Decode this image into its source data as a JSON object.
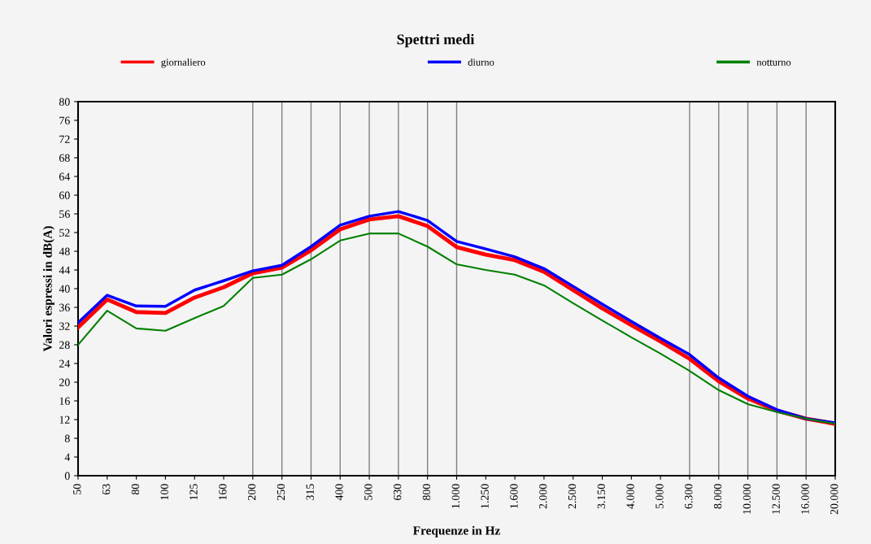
{
  "chart_data": {
    "type": "line",
    "title": "Spettri medi",
    "xlabel": "Frequenze in Hz",
    "ylabel": "Valori espressi in dB(A)",
    "categories": [
      "50",
      "63",
      "80",
      "100",
      "125",
      "160",
      "200",
      "250",
      "315",
      "400",
      "500",
      "630",
      "800",
      "1.000",
      "1.250",
      "1.600",
      "2.000",
      "2.500",
      "3.150",
      "4.000",
      "5.000",
      "6.300",
      "8.000",
      "10.000",
      "12.500",
      "16.000",
      "20.000"
    ],
    "series": [
      {
        "name": "giornaliero",
        "color": "#ff0000",
        "values": [
          31.7,
          37.7,
          35.0,
          34.8,
          38.1,
          40.3,
          43.3,
          44.5,
          48.2,
          52.7,
          54.8,
          55.5,
          53.4,
          48.9,
          47.3,
          46.1,
          43.6,
          39.7,
          35.8,
          32.2,
          28.7,
          25.0,
          20.2,
          16.5,
          13.9,
          12.2,
          11.1
        ]
      },
      {
        "name": "diurno",
        "color": "#0000ff",
        "values": [
          32.7,
          38.6,
          36.3,
          36.2,
          39.7,
          41.7,
          43.8,
          45.0,
          49.0,
          53.6,
          55.5,
          56.5,
          54.6,
          50.1,
          48.5,
          46.8,
          44.3,
          40.5,
          36.7,
          33.0,
          29.4,
          25.9,
          20.9,
          17.0,
          14.1,
          12.2,
          11.3
        ]
      },
      {
        "name": "notturno",
        "color": "#008000",
        "values": [
          28.0,
          35.3,
          31.5,
          31.0,
          33.7,
          36.3,
          42.3,
          43.0,
          46.3,
          50.3,
          51.8,
          51.8,
          49.0,
          45.2,
          44.0,
          43.0,
          40.7,
          36.9,
          33.2,
          29.6,
          26.1,
          22.4,
          18.3,
          15.3,
          13.6,
          12.2,
          11.1
        ]
      }
    ],
    "ylim": [
      0,
      80
    ],
    "yticks": [
      0,
      4,
      8,
      12,
      16,
      20,
      24,
      28,
      32,
      36,
      40,
      44,
      48,
      52,
      56,
      60,
      64,
      68,
      72,
      76,
      80
    ],
    "grid": false,
    "legend": "top",
    "marker": "none",
    "line_style": "solid",
    "ref_lines": [
      {
        "axis": "x",
        "value": "200",
        "color": "#808080"
      },
      {
        "axis": "x",
        "value": "250",
        "color": "#808080"
      },
      {
        "axis": "x",
        "value": "315",
        "color": "#808080"
      },
      {
        "axis": "x",
        "value": "400",
        "color": "#808080"
      },
      {
        "axis": "x",
        "value": "500",
        "color": "#808080"
      },
      {
        "axis": "x",
        "value": "630",
        "color": "#808080"
      },
      {
        "axis": "x",
        "value": "800",
        "color": "#808080"
      },
      {
        "axis": "x",
        "value": "1.000",
        "color": "#808080"
      },
      {
        "axis": "x",
        "value": "6.300",
        "color": "#808080"
      },
      {
        "axis": "x",
        "value": "8.000",
        "color": "#808080"
      },
      {
        "axis": "x",
        "value": "10.000",
        "color": "#808080"
      },
      {
        "axis": "x",
        "value": "12.500",
        "color": "#808080"
      },
      {
        "axis": "x",
        "value": "16.000",
        "color": "#808080"
      }
    ]
  }
}
